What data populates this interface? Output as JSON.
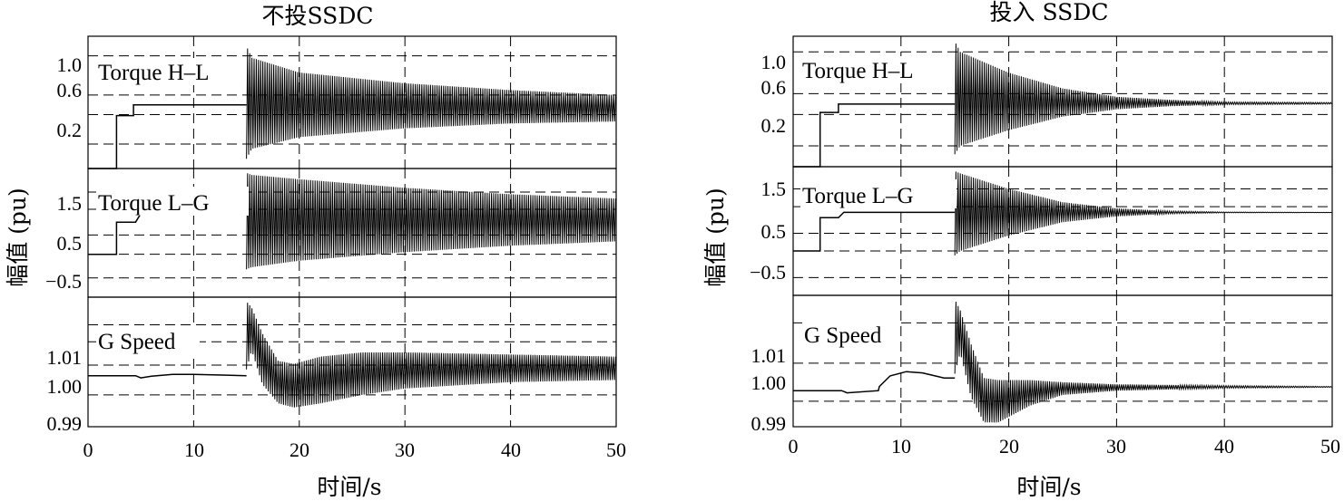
{
  "charts": [
    {
      "title": "不投SSDC",
      "xlabel": "时间/s",
      "ylabel": "幅值 (pu)",
      "x_ticks": [
        "0",
        "10",
        "20",
        "30",
        "40",
        "50"
      ],
      "panels": [
        {
          "label": "Torque H–L",
          "y_ticks": [
            "1.0",
            "0.6",
            "0.2"
          ]
        },
        {
          "label": "Torque L–G",
          "y_ticks": [
            "1.5",
            "0.5",
            "−0.5"
          ]
        },
        {
          "label": "G Speed",
          "y_ticks": [
            "1.01",
            "1.00",
            "0.99"
          ]
        }
      ]
    },
    {
      "title": "投入 SSDC",
      "xlabel": "时间/s",
      "ylabel": "幅值 (pu)",
      "x_ticks": [
        "0",
        "10",
        "20",
        "30",
        "40",
        "50"
      ],
      "panels": [
        {
          "label": "Torque H–L",
          "y_ticks": [
            "1.0",
            "0.6",
            "0.2"
          ]
        },
        {
          "label": "Torque L–G",
          "y_ticks": [
            "1.5",
            "0.5",
            "−0.5"
          ]
        },
        {
          "label": "G Speed",
          "y_ticks": [
            "1.01",
            "1.00",
            "0.99"
          ]
        }
      ]
    }
  ],
  "chart_data": [
    {
      "type": "line",
      "title": "不投SSDC",
      "xlabel": "时间/s",
      "ylabel": "幅值 (pu)",
      "xlim": [
        0,
        50
      ],
      "x_ticks": [
        0,
        10,
        20,
        30,
        40,
        50
      ],
      "grid": true,
      "subplots": [
        {
          "label": "Torque H–L",
          "ylim": [
            -0.15,
            1.2
          ],
          "y_ticks": [
            0.2,
            0.6,
            1.0
          ],
          "gridlines": [
            0.1,
            0.4,
            0.6,
            1.0
          ],
          "series": [
            {
              "x": [
                0,
                2.7,
                2.7,
                4.3,
                4.3,
                15
              ],
              "y": [
                -0.15,
                -0.15,
                0.39,
                0.39,
                0.5,
                0.5
              ]
            }
          ],
          "envelope": {
            "x": [
              15,
              15.5,
              20,
              30,
              40,
              50
            ],
            "upper": [
              1.1,
              0.98,
              0.83,
              0.72,
              0.65,
              0.6
            ],
            "lower": [
              -0.05,
              0.05,
              0.17,
              0.26,
              0.31,
              0.33
            ]
          }
        },
        {
          "label": "Torque L–G",
          "ylim": [
            -0.95,
            2.05
          ],
          "y_ticks": [
            -0.5,
            0.5,
            1.5
          ],
          "gridlines": [
            -0.5,
            0.05,
            0.5,
            1.1,
            1.5
          ],
          "series": [
            {
              "x": [
                0,
                2.7,
                2.7,
                4.5,
                5.0,
                15
              ],
              "y": [
                0.05,
                0.05,
                0.8,
                0.8,
                1.0,
                1.0
              ]
            }
          ],
          "envelope": {
            "x": [
              15,
              15.5,
              20,
              30,
              40,
              50
            ],
            "upper": [
              1.95,
              1.9,
              1.8,
              1.6,
              1.45,
              1.35
            ],
            "lower": [
              -0.3,
              -0.25,
              -0.1,
              0.1,
              0.25,
              0.35
            ]
          }
        },
        {
          "label": "G Speed",
          "ylim": [
            0.988,
            1.0185
          ],
          "y_ticks": [
            0.99,
            1.0,
            1.01
          ],
          "gridlines": [
            0.9955,
            1.0025,
            1.008,
            1.012
          ],
          "series": [
            {
              "x": [
                0,
                4.5,
                5,
                6,
                8,
                10,
                15
              ],
              "y": [
                1.0,
                1.0,
                0.9995,
                0.9999,
                1.0003,
                1.0003,
                1.0
              ]
            }
          ],
          "envelope": {
            "x": [
              15,
              15.5,
              16.5,
              18,
              19.5,
              22,
              26,
              30,
              40,
              50
            ],
            "upper": [
              1.0175,
              1.016,
              1.01,
              1.0035,
              1.0028,
              1.0045,
              1.0055,
              1.0055,
              1.005,
              1.0045
            ],
            "lower": [
              1.0015,
              1.006,
              0.998,
              0.9935,
              0.9925,
              0.9935,
              0.9955,
              0.997,
              0.9985,
              0.999
            ]
          }
        }
      ]
    },
    {
      "type": "line",
      "title": "投入 SSDC",
      "xlabel": "时间/s",
      "ylabel": "幅值 (pu)",
      "xlim": [
        0,
        50
      ],
      "x_ticks": [
        0,
        10,
        20,
        30,
        40,
        50
      ],
      "grid": true,
      "subplots": [
        {
          "label": "Torque H–L",
          "ylim": [
            -0.1,
            1.15
          ],
          "y_ticks": [
            0.2,
            0.6,
            1.0
          ],
          "gridlines": [
            0.1,
            0.4,
            0.6,
            1.0
          ],
          "series": [
            {
              "x": [
                0,
                2.5,
                2.5,
                4.2,
                4.2,
                15
              ],
              "y": [
                -0.1,
                -0.1,
                0.42,
                0.42,
                0.5,
                0.5
              ]
            }
          ],
          "envelope": {
            "x": [
              15,
              15.5,
              20,
              25,
              30,
              35,
              40,
              50
            ],
            "upper": [
              1.1,
              1.0,
              0.8,
              0.65,
              0.57,
              0.54,
              0.52,
              0.515
            ],
            "lower": [
              0.02,
              0.1,
              0.25,
              0.38,
              0.45,
              0.48,
              0.495,
              0.5
            ]
          }
        },
        {
          "label": "Torque L–G",
          "ylim": [
            -0.9,
            2.0
          ],
          "y_ticks": [
            -0.5,
            0.5,
            1.5
          ],
          "gridlines": [
            -0.5,
            0.1,
            0.5,
            1.1,
            1.5
          ],
          "series": [
            {
              "x": [
                0,
                2.5,
                2.5,
                4.2,
                4.7,
                15
              ],
              "y": [
                0.1,
                0.1,
                0.85,
                0.85,
                0.97,
                0.97
              ]
            }
          ],
          "envelope": {
            "x": [
              15,
              15.5,
              20,
              25,
              30,
              35,
              40,
              50
            ],
            "upper": [
              1.9,
              1.85,
              1.5,
              1.2,
              1.06,
              1.0,
              0.98,
              0.97
            ],
            "lower": [
              0.0,
              0.1,
              0.45,
              0.75,
              0.88,
              0.94,
              0.96,
              0.965
            ]
          }
        },
        {
          "label": "G Speed",
          "ylim": [
            0.9885,
            1.0195
          ],
          "y_ticks": [
            0.99,
            1.0,
            1.01
          ],
          "gridlines": [
            0.9945,
            1.0035,
            1.013
          ],
          "series": [
            {
              "x": [
                0,
                4.5,
                5.0,
                7.9,
                8.0,
                9,
                10.5,
                12,
                14,
                15
              ],
              "y": [
                0.997,
                0.997,
                0.9965,
                0.997,
                0.998,
                1.0005,
                1.0015,
                1.0012,
                1.0,
                1.0
              ]
            }
          ],
          "envelope": {
            "x": [
              15,
              15.5,
              16.5,
              17.7,
              19,
              22,
              25,
              30,
              40,
              50
            ],
            "upper": [
              1.0185,
              1.016,
              1.008,
              1.0,
              0.9995,
              0.9995,
              0.999,
              0.9985,
              0.9982,
              0.998
            ],
            "lower": [
              1.001,
              1.006,
              0.9955,
              0.9895,
              0.9895,
              0.9935,
              0.996,
              0.997,
              0.9976,
              0.9978
            ]
          }
        }
      ]
    }
  ]
}
